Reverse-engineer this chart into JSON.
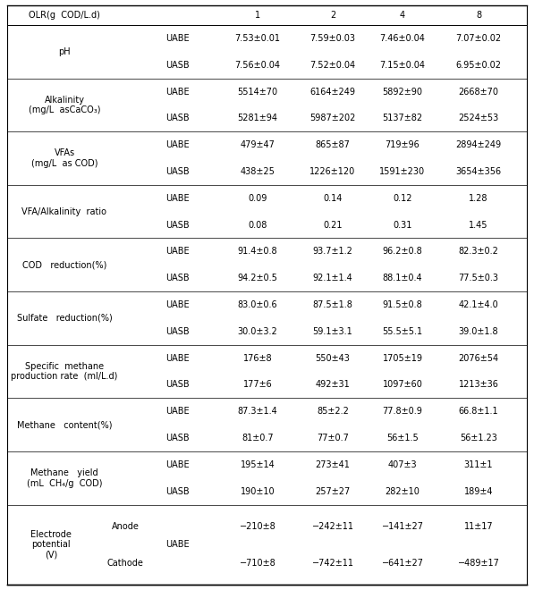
{
  "col_headers": [
    "OLR(g  COD/L.d)",
    "1",
    "2",
    "4",
    "8"
  ],
  "sections": [
    {
      "label": "pH",
      "rows": [
        [
          "UABE",
          "7.53±0.01",
          "7.59±0.03",
          "7.46±0.04",
          "7.07±0.02"
        ],
        [
          "UASB",
          "7.56±0.04",
          "7.52±0.04",
          "7.15±0.04",
          "6.95±0.02"
        ]
      ],
      "special": null
    },
    {
      "label": "Alkalinity\n(mg/L  asCaCO₃)",
      "rows": [
        [
          "UABE",
          "5514±70",
          "6164±249",
          "5892±90",
          "2668±70"
        ],
        [
          "UASB",
          "5281±94",
          "5987±202",
          "5137±82",
          "2524±53"
        ]
      ],
      "special": null
    },
    {
      "label": "VFAs\n(mg/L  as COD)",
      "rows": [
        [
          "UABE",
          "479±47",
          "865±87",
          "719±96",
          "2894±249"
        ],
        [
          "UASB",
          "438±25",
          "1226±120",
          "1591±230",
          "3654±356"
        ]
      ],
      "special": null
    },
    {
      "label": "VFA/Alkalinity  ratio",
      "rows": [
        [
          "UABE",
          "0.09",
          "0.14",
          "0.12",
          "1.28"
        ],
        [
          "UASB",
          "0.08",
          "0.21",
          "0.31",
          "1.45"
        ]
      ],
      "special": null
    },
    {
      "label": "COD   reduction(%)",
      "rows": [
        [
          "UABE",
          "91.4±0.8",
          "93.7±1.2",
          "96.2±0.8",
          "82.3±0.2"
        ],
        [
          "UASB",
          "94.2±0.5",
          "92.1±1.4",
          "88.1±0.4",
          "77.5±0.3"
        ]
      ],
      "special": null
    },
    {
      "label": "Sulfate   reduction(%)",
      "rows": [
        [
          "UABE",
          "83.0±0.6",
          "87.5±1.8",
          "91.5±0.8",
          "42.1±4.0"
        ],
        [
          "UASB",
          "30.0±3.2",
          "59.1±3.1",
          "55.5±5.1",
          "39.0±1.8"
        ]
      ],
      "special": null
    },
    {
      "label": "Specific  methane\nproduction rate  (ml/L.d)",
      "rows": [
        [
          "UABE",
          "176±8",
          "550±43",
          "1705±19",
          "2076±54"
        ],
        [
          "UASB",
          "177±6",
          "492±31",
          "1097±60",
          "1213±36"
        ]
      ],
      "special": null
    },
    {
      "label": "Methane   content(%)",
      "rows": [
        [
          "UABE",
          "87.3±1.4",
          "85±2.2",
          "77.8±0.9",
          "66.8±1.1"
        ],
        [
          "UASB",
          "81±0.7",
          "77±0.7",
          "56±1.5",
          "56±1.23"
        ]
      ],
      "special": null
    },
    {
      "label": "Methane   yield\n(mL  CH₄/g  COD)",
      "rows": [
        [
          "UABE",
          "195±14",
          "273±41",
          "407±3",
          "311±1"
        ],
        [
          "UASB",
          "190±10",
          "257±27",
          "282±10",
          "189±4"
        ]
      ],
      "special": null
    },
    {
      "label": "Electrode\npotential\n(V)",
      "rows": null,
      "special": "electrode",
      "anode_label": "Anode",
      "cathode_label": "Cathode",
      "reactor_label": "UABE",
      "anode_vals": [
        "−210±8",
        "−242±11",
        "−141±27",
        "11±17"
      ],
      "cathode_vals": [
        "−710±8",
        "−742±11",
        "−641±27",
        "−489±17"
      ]
    }
  ],
  "bg_color": "#ffffff",
  "line_color": "#000000",
  "text_color": "#000000",
  "font_size": 7.0,
  "fig_w": 5.97,
  "fig_h": 6.6,
  "dpi": 100
}
